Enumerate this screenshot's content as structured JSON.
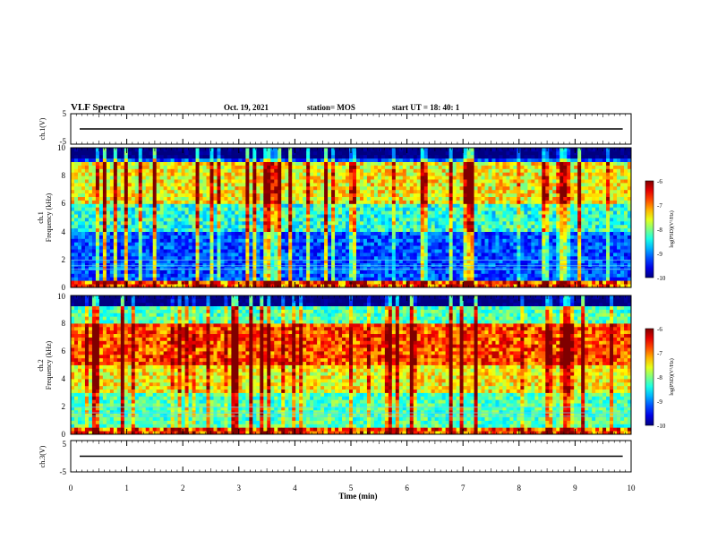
{
  "header": {
    "title": "VLF Spectra",
    "date": "Oct. 19, 2021",
    "station": "station= MOS",
    "start": "start  UT  =   18: 40: 1"
  },
  "chart_data": {
    "type": "heatmap",
    "xlabel": "Time  (min)",
    "xlim": [
      0,
      10
    ],
    "x_ticks": [
      "0",
      "1",
      "2",
      "3",
      "4",
      "5",
      "6",
      "7",
      "8",
      "9",
      "10"
    ],
    "panels": [
      {
        "kind": "waveform",
        "ylabel": "ch.1(V)",
        "ylim": [
          -5,
          5
        ],
        "y_ticks": [
          "5",
          "-5"
        ],
        "level": 0
      },
      {
        "kind": "spectrogram",
        "ylabel_1": "ch.1",
        "ylabel_2": "Frequency  (kHz)",
        "ylim": [
          0,
          10
        ],
        "y_ticks": [
          "0",
          "2",
          "4",
          "6",
          "8",
          "10"
        ],
        "colorbar": {
          "label": "log(PSD)(V²/Hz)",
          "range": [
            -10,
            -6
          ],
          "ticks": [
            "-6",
            "-7",
            "-8",
            "-9",
            "-10"
          ]
        },
        "dominant_band_khz": [
          6,
          9
        ],
        "dominant_log_psd": -7.5,
        "background_log_psd": -9.2
      },
      {
        "kind": "spectrogram",
        "ylabel_1": "ch.2",
        "ylabel_2": "Frequency  (kHz)",
        "ylim": [
          0,
          10
        ],
        "y_ticks": [
          "0",
          "2",
          "4",
          "6",
          "8",
          "10"
        ],
        "colorbar": {
          "label": "log(PSD)(V²/Hz)",
          "range": [
            -10,
            -6
          ],
          "ticks": [
            "-6",
            "-7",
            "-8",
            "-9",
            "-10"
          ]
        },
        "dominant_band_khz": [
          5,
          8
        ],
        "dominant_log_psd": -6.8,
        "background_log_psd": -8.2
      },
      {
        "kind": "waveform",
        "ylabel": "ch.3(V)",
        "ylim": [
          -5,
          5
        ],
        "y_ticks": [
          "5",
          "-5"
        ],
        "level": 0
      }
    ]
  }
}
